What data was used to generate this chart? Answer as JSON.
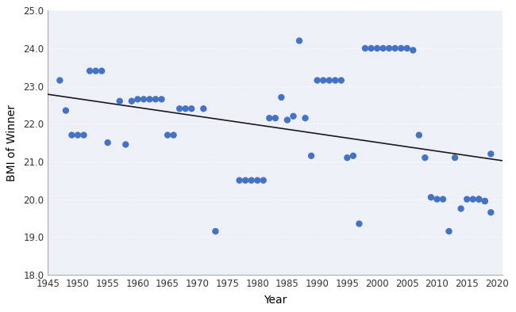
{
  "xlabel": "Year",
  "ylabel": "BMI of Winner",
  "xlim": [
    1945,
    2021
  ],
  "ylim": [
    18.0,
    25.0
  ],
  "xticks": [
    1945,
    1950,
    1955,
    1960,
    1965,
    1970,
    1975,
    1980,
    1985,
    1990,
    1995,
    2000,
    2005,
    2010,
    2015,
    2020
  ],
  "yticks": [
    18.0,
    19.0,
    20.0,
    21.0,
    22.0,
    23.0,
    24.0,
    25.0
  ],
  "ytick_labels": [
    "18.0",
    "19.0",
    "20.0",
    "21.0",
    "22.0",
    "23.0",
    "24.0",
    "25.0"
  ],
  "marker_color": "#4472C4",
  "marker_size": 6,
  "line_color": "#1a1a1a",
  "background_color": "#FFFFFF",
  "plot_bg_color": "#EEF0F8",
  "grid_color": "#FFFFFF",
  "data_points": [
    [
      1947,
      23.15
    ],
    [
      1948,
      22.35
    ],
    [
      1949,
      21.7
    ],
    [
      1950,
      21.7
    ],
    [
      1951,
      21.7
    ],
    [
      1952,
      23.4
    ],
    [
      1953,
      23.4
    ],
    [
      1954,
      23.4
    ],
    [
      1955,
      21.5
    ],
    [
      1957,
      22.6
    ],
    [
      1958,
      21.45
    ],
    [
      1959,
      22.6
    ],
    [
      1960,
      22.65
    ],
    [
      1961,
      22.65
    ],
    [
      1962,
      22.65
    ],
    [
      1963,
      22.65
    ],
    [
      1964,
      22.65
    ],
    [
      1965,
      21.7
    ],
    [
      1966,
      21.7
    ],
    [
      1967,
      22.4
    ],
    [
      1968,
      22.4
    ],
    [
      1969,
      22.4
    ],
    [
      1971,
      22.4
    ],
    [
      1973,
      19.15
    ],
    [
      1977,
      20.5
    ],
    [
      1978,
      20.5
    ],
    [
      1979,
      20.5
    ],
    [
      1980,
      20.5
    ],
    [
      1981,
      20.5
    ],
    [
      1982,
      22.15
    ],
    [
      1983,
      22.15
    ],
    [
      1984,
      22.7
    ],
    [
      1985,
      22.1
    ],
    [
      1986,
      22.2
    ],
    [
      1987,
      24.2
    ],
    [
      1988,
      22.15
    ],
    [
      1989,
      21.15
    ],
    [
      1990,
      23.15
    ],
    [
      1991,
      23.15
    ],
    [
      1992,
      23.15
    ],
    [
      1993,
      23.15
    ],
    [
      1994,
      23.15
    ],
    [
      1995,
      21.1
    ],
    [
      1996,
      21.15
    ],
    [
      1997,
      19.35
    ],
    [
      1998,
      24.0
    ],
    [
      1999,
      24.0
    ],
    [
      2000,
      24.0
    ],
    [
      2001,
      24.0
    ],
    [
      2002,
      24.0
    ],
    [
      2003,
      24.0
    ],
    [
      2004,
      24.0
    ],
    [
      2005,
      24.0
    ],
    [
      2006,
      23.95
    ],
    [
      2007,
      21.7
    ],
    [
      2008,
      21.1
    ],
    [
      2009,
      20.05
    ],
    [
      2010,
      20.0
    ],
    [
      2011,
      20.0
    ],
    [
      2012,
      19.15
    ],
    [
      2013,
      21.1
    ],
    [
      2014,
      19.75
    ],
    [
      2015,
      20.0
    ],
    [
      2016,
      20.0
    ],
    [
      2017,
      20.0
    ],
    [
      2017,
      20.0
    ],
    [
      2018,
      19.95
    ],
    [
      2018,
      19.95
    ],
    [
      2019,
      19.65
    ],
    [
      2019,
      21.2
    ]
  ],
  "trendline_x": [
    1945,
    2021
  ],
  "trendline_y": [
    22.78,
    21.02
  ]
}
